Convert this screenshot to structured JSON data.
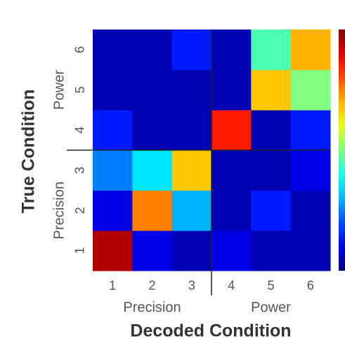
{
  "chart_data": {
    "type": "heatmap",
    "xlabel": "Decoded Condition",
    "ylabel": "True Condition",
    "x_categories": [
      "1",
      "2",
      "3",
      "4",
      "5",
      "6"
    ],
    "y_categories": [
      "1",
      "2",
      "3",
      "4",
      "5",
      "6"
    ],
    "x_groups": [
      "Precision",
      "Power"
    ],
    "y_groups": [
      "Precision",
      "Power"
    ],
    "values": [
      [
        0.95,
        0.1,
        0.05,
        0.1,
        0.05,
        0.05
      ],
      [
        0.1,
        0.75,
        0.3,
        0.05,
        0.15,
        0.05
      ],
      [
        0.25,
        0.35,
        0.68,
        0.05,
        0.05,
        0.1
      ],
      [
        0.15,
        0.05,
        0.05,
        0.85,
        0.05,
        0.15
      ],
      [
        0.05,
        0.05,
        0.05,
        0.05,
        0.68,
        0.5
      ],
      [
        0.05,
        0.05,
        0.15,
        0.05,
        0.45,
        0.7
      ]
    ],
    "clim": [
      0,
      1
    ],
    "colormap": "jet",
    "colorbar": true
  }
}
